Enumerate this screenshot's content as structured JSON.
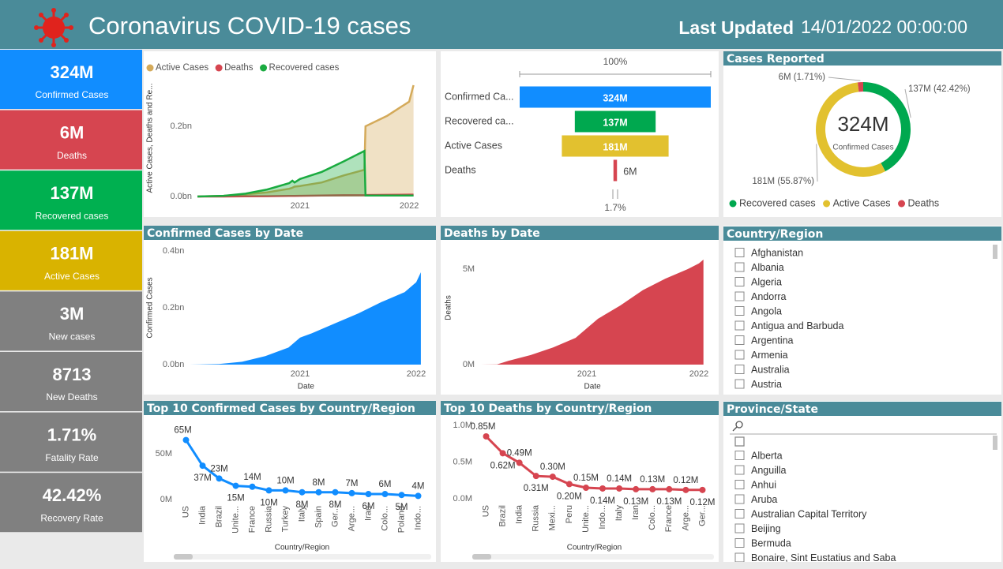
{
  "header": {
    "title": "Coronavirus COVID-19 cases",
    "updated_label": "Last Updated",
    "updated": "14/01/2022 00:00:00"
  },
  "kpis": [
    {
      "value": "324M",
      "label": "Confirmed Cases",
      "color": "#118dff"
    },
    {
      "value": "6M",
      "label": "Deaths",
      "color": "#d64550"
    },
    {
      "value": "137M",
      "label": "Recovered cases",
      "color": "#00b050"
    },
    {
      "value": "181M",
      "label": "Active Cases",
      "color": "#d9b300"
    },
    {
      "value": "3M",
      "label": "New cases",
      "color": "#808080"
    },
    {
      "value": "8713",
      "label": "New Deaths",
      "color": "#808080"
    },
    {
      "value": "1.71%",
      "label": "Fatality Rate",
      "color": "#808080"
    },
    {
      "value": "42.42%",
      "label": "Recovery Rate",
      "color": "#808080"
    }
  ],
  "chart_data": [
    {
      "type": "area",
      "ylabel": "Active Cases, Deaths and Re...",
      "x": [
        2020.06,
        2020.3,
        2020.5,
        2020.7,
        2020.9,
        2020.93,
        2020.95,
        2021.0,
        2021.2,
        2021.4,
        2021.59,
        2021.6,
        2021.8,
        2022.0,
        2022.04
      ],
      "series": [
        {
          "name": "Active Cases",
          "color": "#d4aa5a",
          "values": [
            0,
            0.002,
            0.006,
            0.012,
            0.022,
            0.025,
            0.028,
            0.03,
            0.04,
            0.06,
            0.076,
            0.2,
            0.23,
            0.27,
            0.317
          ]
        },
        {
          "name": "Deaths",
          "color": "#d64550",
          "values": [
            0,
            0,
            0.0005,
            0.001,
            0.0015,
            0.0016,
            0.0017,
            0.002,
            0.003,
            0.0035,
            0.004,
            0.0042,
            0.0047,
            0.0053,
            0.0055
          ]
        },
        {
          "name": "Recovered cases",
          "color": "#1aab40",
          "values": [
            0,
            0.002,
            0.008,
            0.02,
            0.038,
            0.045,
            0.04,
            0.05,
            0.07,
            0.1,
            0.13,
            0.003,
            0.003,
            0.003,
            0.003
          ]
        }
      ],
      "xlim": [
        2020.06,
        2022.05
      ],
      "xticks": [
        2021,
        2022
      ],
      "ylim": [
        0,
        0.33
      ],
      "yticks": [
        {
          "value": 0,
          "label": "0.0bn"
        },
        {
          "value": 0.2,
          "label": "0.2bn"
        }
      ],
      "legend": "top-left"
    },
    {
      "type": "funnel",
      "top_label": "100%",
      "bottom_label": "1.7%",
      "categories": [
        "Confirmed Ca...",
        "Recovered ca...",
        "Active Cases",
        "Deaths"
      ],
      "values": [
        324,
        137,
        181,
        6
      ],
      "value_labels": [
        "324M",
        "137M",
        "181M",
        "6M"
      ],
      "colors": [
        "#118dff",
        "#00a84f",
        "#e2c12f",
        "#d64550"
      ]
    },
    {
      "type": "donut",
      "title": "Cases Reported",
      "center_value": "324M",
      "center_label": "Confirmed Cases",
      "categories": [
        "Recovered cases",
        "Active Cases",
        "Deaths"
      ],
      "values": [
        137,
        181,
        6
      ],
      "value_labels": [
        "137M (42.42%)",
        "181M (55.87%)",
        "6M (1.71%)"
      ],
      "colors": [
        "#00a84f",
        "#e2c12f",
        "#d64550"
      ],
      "legend": "bottom-left"
    },
    {
      "type": "area",
      "title": "Confirmed Cases by Date",
      "xlabel": "Date",
      "ylabel": "Confirmed Cases",
      "x": [
        2020.05,
        2020.3,
        2020.5,
        2020.7,
        2020.9,
        2021.0,
        2021.1,
        2021.3,
        2021.5,
        2021.7,
        2021.9,
        2022.0,
        2022.04
      ],
      "series": [
        {
          "color": "#118dff",
          "values": [
            0,
            0.002,
            0.01,
            0.03,
            0.06,
            0.095,
            0.11,
            0.145,
            0.18,
            0.22,
            0.255,
            0.29,
            0.325
          ]
        }
      ],
      "xlim": [
        2020.05,
        2022.05
      ],
      "xticks": [
        2021,
        2022
      ],
      "ylim": [
        0,
        0.4
      ],
      "yticks": [
        {
          "value": 0,
          "label": "0.0bn"
        },
        {
          "value": 0.2,
          "label": "0.2bn"
        },
        {
          "value": 0.4,
          "label": "0.4bn"
        }
      ]
    },
    {
      "type": "area",
      "title": "Deaths by Date",
      "xlabel": "Date",
      "ylabel": "Deaths",
      "x": [
        2020.05,
        2020.2,
        2020.3,
        2020.5,
        2020.7,
        2020.9,
        2021.0,
        2021.1,
        2021.3,
        2021.5,
        2021.7,
        2021.9,
        2022.0,
        2022.04
      ],
      "series": [
        {
          "color": "#d64550",
          "values": [
            0,
            0.01,
            0.2,
            0.5,
            0.9,
            1.4,
            1.9,
            2.4,
            3.1,
            3.9,
            4.5,
            5.0,
            5.3,
            5.5
          ]
        }
      ],
      "xlim": [
        2020.05,
        2022.05
      ],
      "xticks": [
        2021,
        2022
      ],
      "ylim": [
        0,
        6
      ],
      "yticks": [
        {
          "value": 0,
          "label": "0M"
        },
        {
          "value": 5,
          "label": "5M"
        }
      ]
    },
    {
      "type": "line",
      "title": "Top 10 Confirmed Cases by Country/Region",
      "xlabel": "Country/Region",
      "color": "#118dff",
      "categories": [
        "US",
        "India",
        "Brazil",
        "Unite...",
        "France",
        "Russia",
        "Turkey",
        "Italy",
        "Spain",
        "Ger...",
        "Arge...",
        "Iran",
        "Colo...",
        "Poland",
        "Indo..."
      ],
      "values": [
        65,
        37,
        23,
        15,
        14,
        10,
        10,
        8,
        8,
        8,
        7,
        6,
        6,
        5,
        4
      ],
      "value_labels": [
        "65M",
        "37M",
        "23M",
        "15M",
        "14M",
        "10M",
        "10M",
        "8M",
        "8M",
        "8M",
        "7M",
        "6M",
        "6M",
        "5M",
        "4M"
      ],
      "ylim": [
        0,
        80
      ],
      "yticks": [
        {
          "value": 0,
          "label": "0M"
        },
        {
          "value": 50,
          "label": "50M"
        }
      ]
    },
    {
      "type": "line",
      "title": "Top 10 Deaths by Country/Region",
      "xlabel": "Country/Region",
      "color": "#d64550",
      "categories": [
        "US",
        "Brazil",
        "India",
        "Russia",
        "Mexi...",
        "Peru",
        "Unite...",
        "Indo...",
        "Italy",
        "Iran",
        "Colo...",
        "France",
        "Arge...",
        "Ger..."
      ],
      "values": [
        0.85,
        0.62,
        0.49,
        0.31,
        0.3,
        0.2,
        0.15,
        0.14,
        0.14,
        0.13,
        0.13,
        0.13,
        0.12,
        0.12
      ],
      "value_labels": [
        "0.85M",
        "0.62M",
        "0.49M",
        "0.31M",
        "0.30M",
        "0.20M",
        "0.15M",
        "0.14M",
        "0.14M",
        "0.13M",
        "0.13M",
        "0.13M",
        "0.12M",
        "0.12M"
      ],
      "ylim": [
        0,
        1.04
      ],
      "yticks": [
        {
          "value": 0,
          "label": "0.0M"
        },
        {
          "value": 0.5,
          "label": "0.5M"
        },
        {
          "value": 1,
          "label": "1.0M"
        }
      ]
    }
  ],
  "slicers": [
    {
      "title": "Country/Region",
      "items": [
        "Afghanistan",
        "Albania",
        "Algeria",
        "Andorra",
        "Angola",
        "Antigua and Barbuda",
        "Argentina",
        "Armenia",
        "Australia",
        "Austria"
      ]
    },
    {
      "title": "Province/State",
      "items": [
        "Alberta",
        "Anguilla",
        "Anhui",
        "Aruba",
        "Australian Capital Territory",
        "Beijing",
        "Bermuda",
        "Bonaire, Sint Eustatius and Saba"
      ]
    }
  ]
}
